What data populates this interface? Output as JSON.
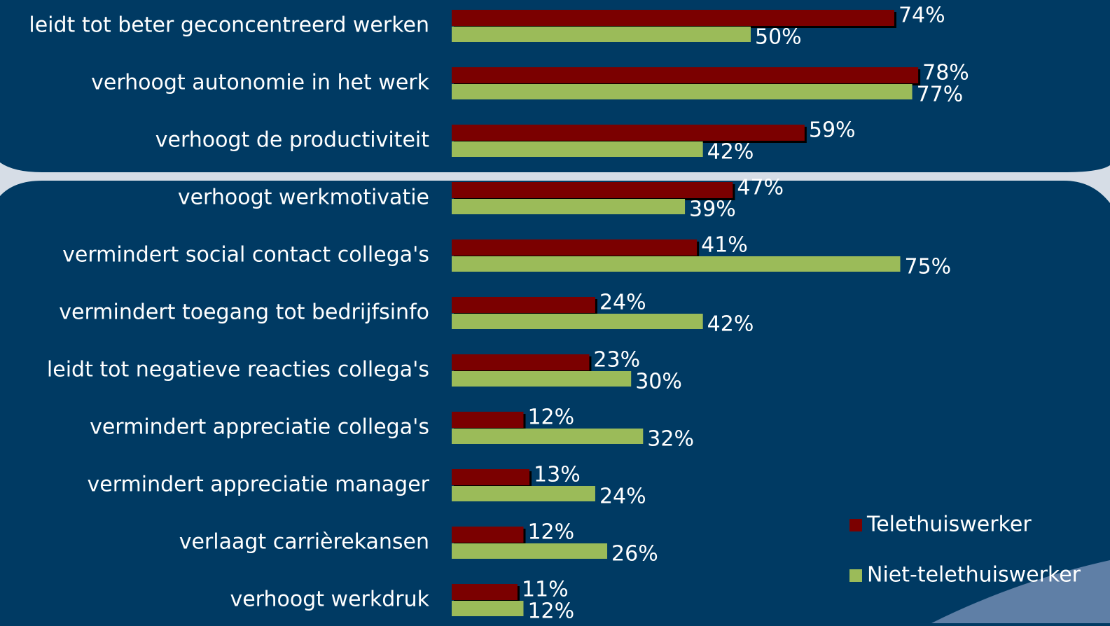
{
  "chart_data": {
    "type": "bar",
    "orientation": "horizontal",
    "categories": [
      "leidt tot beter geconcentreerd werken",
      "verhoogt autonomie in het werk",
      "verhoogt de productiviteit",
      "verhoogt werkmotivatie",
      "vermindert social contact collega's",
      "vermindert toegang tot bedrijfsinfo",
      "leidt tot negatieve reacties collega's",
      "vermindert appreciatie collega's",
      "vermindert appreciatie manager",
      "verlaagt carrièrekansen",
      "verhoogt werkdruk"
    ],
    "series": [
      {
        "name": "Telethuiswerker",
        "color": "#7b0000",
        "values": [
          74,
          78,
          59,
          47,
          41,
          24,
          23,
          12,
          13,
          12,
          11
        ],
        "value_labels": [
          "74%",
          "78%",
          "59%",
          "47%",
          "41%",
          "24%",
          "23%",
          "12%",
          "13%",
          "12%",
          "11%"
        ]
      },
      {
        "name": "Niet-telethuiswerker",
        "color": "#9bbb59",
        "values": [
          50,
          77,
          42,
          39,
          75,
          42,
          30,
          32,
          24,
          26,
          12
        ],
        "value_labels": [
          "50%",
          "77%",
          "42%",
          "39%",
          "75%",
          "42%",
          "30%",
          "32%",
          "24%",
          "26%",
          "12%"
        ]
      }
    ],
    "legend": "lower right"
  }
}
